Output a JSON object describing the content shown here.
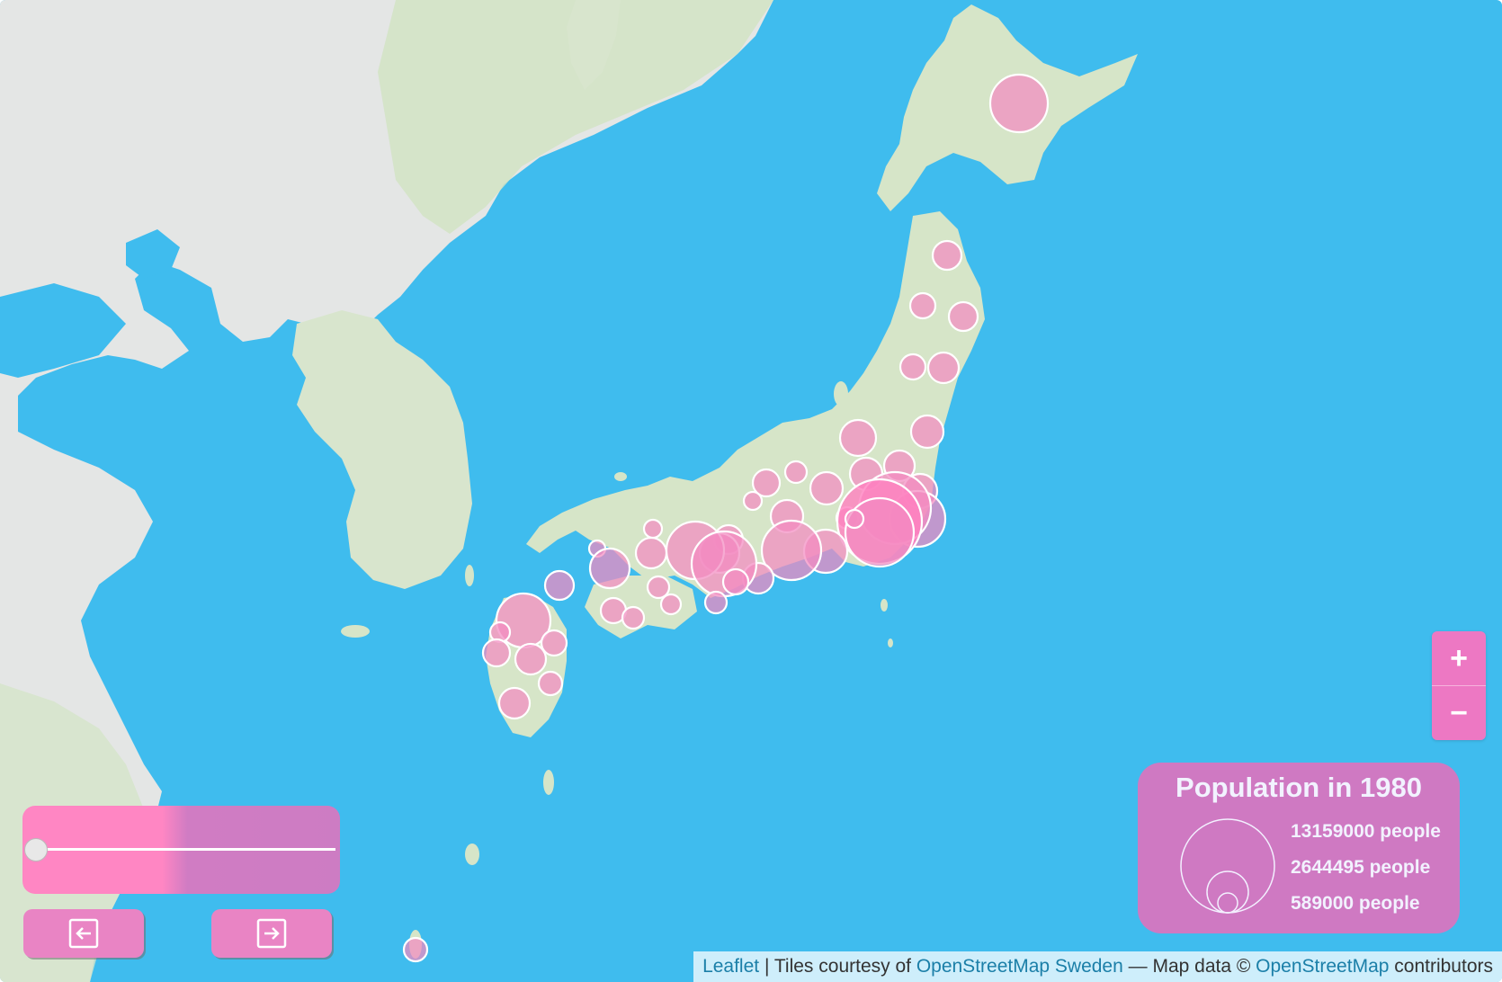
{
  "map": {
    "colors": {
      "water": "#3fbcee",
      "land": "#dde8d5",
      "mainland": "#e5e8e6",
      "bubble": "#f28ac0",
      "bubble_stroke": "#ffffff",
      "panel": "#cf79c2",
      "zoom": "#ed78c3"
    }
  },
  "zoom": {
    "in_label": "+",
    "out_label": "−",
    "in_icon": "plus-icon",
    "out_icon": "minus-icon"
  },
  "legend": {
    "title": "Population in 1980",
    "entries": [
      {
        "label": "13159000 people",
        "value": 13159000
      },
      {
        "label": "2644495 people",
        "value": 2644495
      },
      {
        "label": "589000 people",
        "value": 589000
      }
    ]
  },
  "slider": {
    "position_fraction": 0,
    "prev_icon": "arrow-left-icon",
    "next_icon": "arrow-right-icon"
  },
  "attribution": {
    "leaflet": "Leaflet",
    "sep": " | Tiles courtesy of ",
    "tiles": "OpenStreetMap Sweden",
    "mid": " — Map data © ",
    "osm": "OpenStreetMap",
    "end": " contributors"
  }
}
